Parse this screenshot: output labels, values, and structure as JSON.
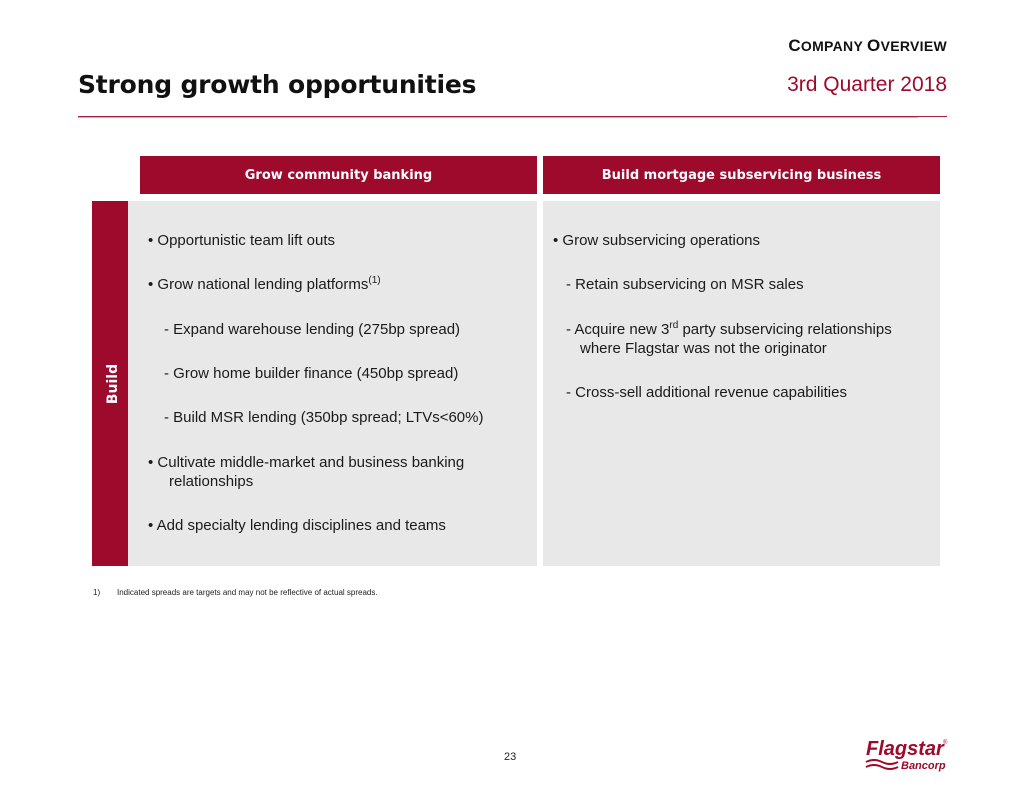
{
  "header": {
    "section_label_c": "C",
    "section_label_rest1": "OMPANY ",
    "section_label_o": "O",
    "section_label_rest2": "VERVIEW",
    "title": "Strong growth opportunities",
    "period": "3rd Quarter 2018"
  },
  "side_tab": {
    "label": "Build"
  },
  "columns": {
    "left_header": "Grow community banking",
    "right_header": "Build mortgage subservicing business"
  },
  "left_items": {
    "i1": "•  Opportunistic team lift outs",
    "i2_text": "•  Grow national lending platforms",
    "i2_sup": "(1)",
    "i3": "-  Expand warehouse lending (275bp spread)",
    "i4": "-  Grow home builder finance (450bp spread)",
    "i5": "-  Build MSR lending (350bp spread;  LTVs<60%)",
    "i6_line1": "•  Cultivate middle-market and business banking",
    "i6_line2": "relationships",
    "i7": "•  Add specialty lending disciplines and teams"
  },
  "right_items": {
    "i1": "•  Grow subservicing operations",
    "i2": "-  Retain subservicing on MSR sales",
    "i3_pre": "-  Acquire new 3",
    "i3_sup": "rd",
    "i3_post": " party subservicing relationships",
    "i3_line2": "where Flagstar was not the originator",
    "i4": "-  Cross-sell additional revenue capabilities"
  },
  "footnote": {
    "num": "1)",
    "text": "Indicated spreads are targets and may not be reflective of actual spreads."
  },
  "page_number": "23",
  "logo": {
    "name": "Flagstar",
    "sub": "Bancorp",
    "mark": "®",
    "color": "#9e0a2c"
  }
}
